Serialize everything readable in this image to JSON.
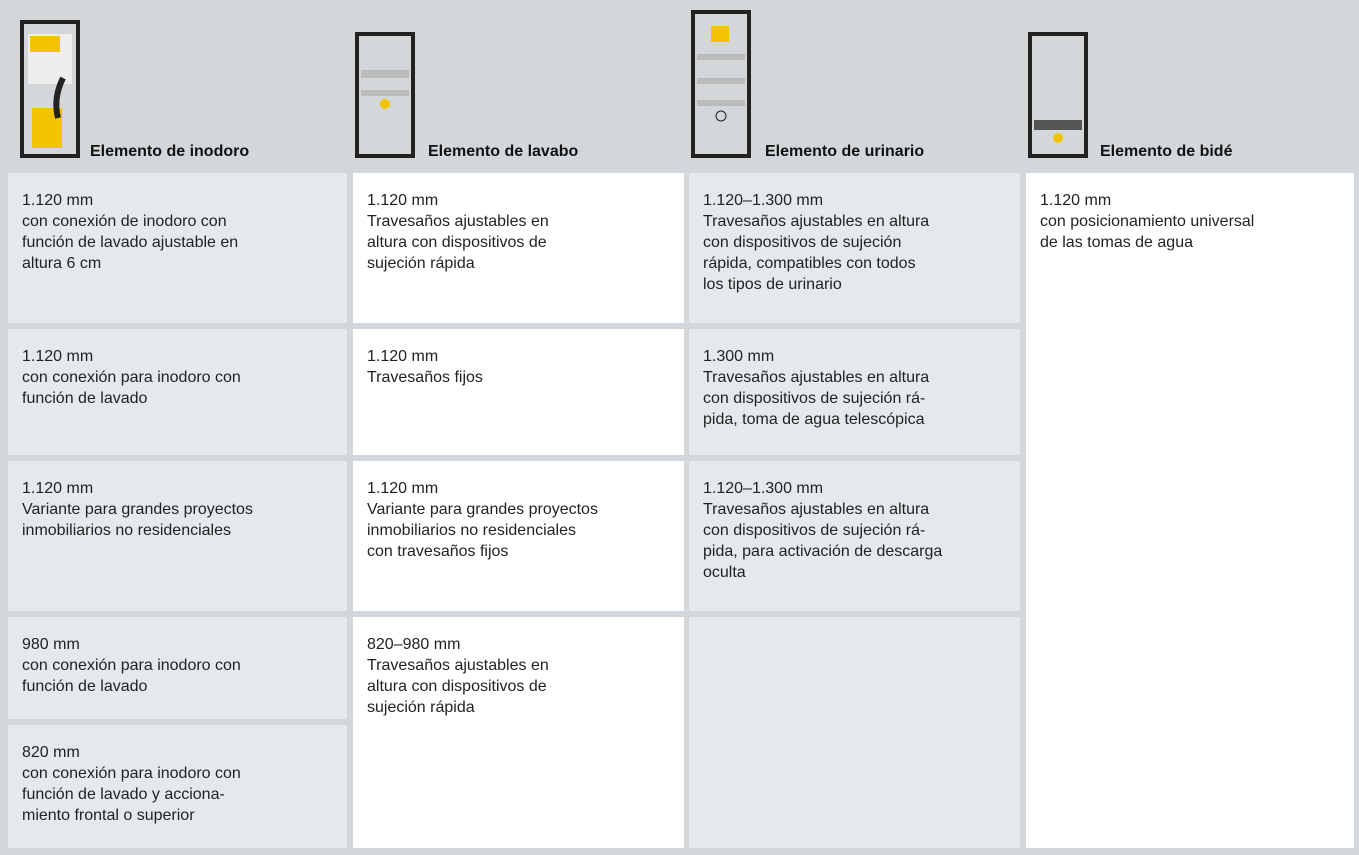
{
  "columns": [
    {
      "title": "Elemento de inodoro",
      "cells": [
        {
          "lines": [
            "1.120 mm",
            "con conexión de inodoro con",
            "función de lavado ajustable en",
            "altura 6 cm"
          ]
        },
        {
          "lines": [
            "1.120 mm",
            "con conexión para inodoro con",
            "función de lavado"
          ]
        },
        {
          "lines": [
            "1.120 mm",
            "Variante para grandes proyectos",
            "inmobiliarios no residenciales"
          ]
        },
        {
          "lines": [
            "980 mm",
            "con conexión para inodoro con",
            "función de lavado"
          ]
        },
        {
          "lines": [
            "820 mm",
            "con conexión para inodoro con",
            "función de lavado y acciona-",
            "miento frontal o superior"
          ]
        }
      ]
    },
    {
      "title": "Elemento de lavabo",
      "cells": [
        {
          "lines": [
            "1.120 mm",
            "Travesaños ajustables en",
            "altura con dispositivos de",
            "sujeción rápida"
          ]
        },
        {
          "lines": [
            "1.120 mm",
            "Travesaños fijos"
          ]
        },
        {
          "lines": [
            "1.120 mm",
            "Variante para grandes proyectos",
            "inmobiliarios no residenciales",
            "con travesaños fijos"
          ]
        },
        {
          "lines": [
            "820–980 mm",
            "Travesaños ajustables en",
            "altura con dispositivos de",
            "sujeción rápida"
          ]
        }
      ]
    },
    {
      "title": "Elemento de urinario",
      "cells": [
        {
          "lines": [
            "1.120–1.300 mm",
            "Travesaños ajustables en altura",
            "con dispositivos de sujeción",
            "rápida, compatibles con todos",
            "los tipos de urinario"
          ]
        },
        {
          "lines": [
            "1.300 mm",
            "Travesaños ajustables en altura",
            "con dispositivos de sujeción rá-",
            "pida, toma de agua telescópica"
          ]
        },
        {
          "lines": [
            "1.120–1.300 mm",
            "Travesaños ajustables en altura",
            "con dispositivos de sujeción rá-",
            "pida, para activación de descarga",
            "oculta"
          ]
        }
      ]
    },
    {
      "title": "Elemento de bidé",
      "cells": [
        {
          "lines": [
            "1.120 mm",
            "con posicionamiento universal",
            "de las tomas de agua"
          ]
        }
      ]
    }
  ]
}
